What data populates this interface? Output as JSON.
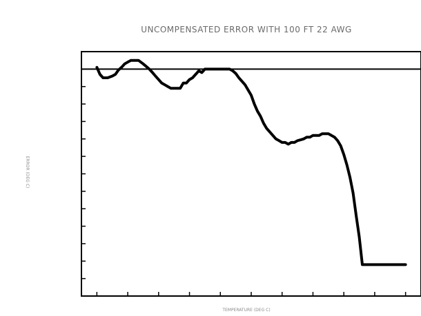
{
  "chart_data": {
    "type": "line",
    "title": "UNCOMPENSATED ERROR WITH 100 FT 22 AWG",
    "subtitle": "",
    "xlabel": "TEMPERATURE (DEG C)",
    "ylabel": "ERROR (DEG C)",
    "xlim": [
      -0.5,
      10.5
    ],
    "ylim": [
      -13,
      1
    ],
    "x_ticks": [
      0,
      1,
      2,
      3,
      4,
      5,
      6,
      7,
      8,
      9,
      10
    ],
    "y_ticks": [
      1,
      0,
      -1,
      -2,
      -3,
      -4,
      -5,
      -6,
      -7,
      -8,
      -9,
      -10,
      -11,
      -12,
      -13
    ],
    "x_tick_labels": [
      "",
      "",
      "",
      "",
      "",
      "",
      "",
      "",
      "",
      "",
      ""
    ],
    "y_tick_labels": [
      "",
      "",
      "",
      "",
      "",
      "",
      "",
      "",
      "",
      "",
      "",
      "",
      "",
      "",
      ""
    ],
    "reference_line": 0,
    "grid": false,
    "series": [
      {
        "color": "#000000",
        "x": [
          0,
          0.1,
          0.2,
          0.35,
          0.5,
          0.6,
          0.7,
          0.8,
          0.9,
          1.0,
          1.1,
          1.2,
          1.35,
          1.5,
          1.7,
          1.8,
          1.9,
          2.0,
          2.1,
          2.2,
          2.3,
          2.4,
          2.5,
          2.6,
          2.7,
          2.8,
          2.9,
          3.0,
          3.1,
          3.2,
          3.3,
          3.4,
          3.5,
          3.6,
          3.7,
          3.8,
          3.9,
          4.0,
          4.1,
          4.2,
          4.3,
          4.4,
          4.5,
          4.6,
          4.8,
          5.0,
          5.1,
          5.2,
          5.3,
          5.4,
          5.5,
          5.6,
          5.7,
          5.8,
          5.9,
          6.0,
          6.1,
          6.2,
          6.3,
          6.4,
          6.5,
          6.6,
          6.7,
          6.8,
          6.9,
          7.0,
          7.1,
          7.2,
          7.3,
          7.4,
          7.5,
          7.6,
          7.7,
          7.8,
          7.9,
          8.0,
          8.1,
          8.2,
          8.3,
          8.4,
          8.5,
          8.6,
          8.7,
          8.8,
          8.9,
          9.0,
          9.1,
          9.2,
          9.3,
          9.4,
          9.5,
          9.6,
          9.7,
          9.8,
          9.9,
          10.0
        ],
        "values": [
          0.1,
          -0.3,
          -0.5,
          -0.5,
          -0.4,
          -0.3,
          -0.05,
          0.1,
          0.3,
          0.4,
          0.5,
          0.5,
          0.5,
          0.3,
          0,
          -0.2,
          -0.4,
          -0.6,
          -0.8,
          -0.9,
          -1.0,
          -1.1,
          -1.1,
          -1.1,
          -1.1,
          -0.8,
          -0.8,
          -0.6,
          -0.5,
          -0.3,
          -0.1,
          -0.2,
          0,
          0,
          0,
          0,
          0,
          0,
          0,
          0,
          0,
          -0.1,
          -0.25,
          -0.5,
          -0.9,
          -1.5,
          -2.0,
          -2.4,
          -2.7,
          -3.1,
          -3.4,
          -3.6,
          -3.8,
          -4.0,
          -4.1,
          -4.2,
          -4.2,
          -4.3,
          -4.2,
          -4.2,
          -4.1,
          -4.05,
          -4.0,
          -3.9,
          -3.9,
          -3.8,
          -3.8,
          -3.8,
          -3.7,
          -3.7,
          -3.7,
          -3.8,
          -3.9,
          -4.1,
          -4.4,
          -4.9,
          -5.5,
          -6.2,
          -7.1,
          -8.4,
          -9.6,
          -11.2,
          -11.2,
          -11.2,
          -11.2,
          -11.2,
          -11.2,
          -11.2,
          -11.2,
          -11.2,
          -11.2,
          -11.2,
          -11.2,
          -11.2,
          -11.2,
          -11.2
        ]
      }
    ]
  }
}
